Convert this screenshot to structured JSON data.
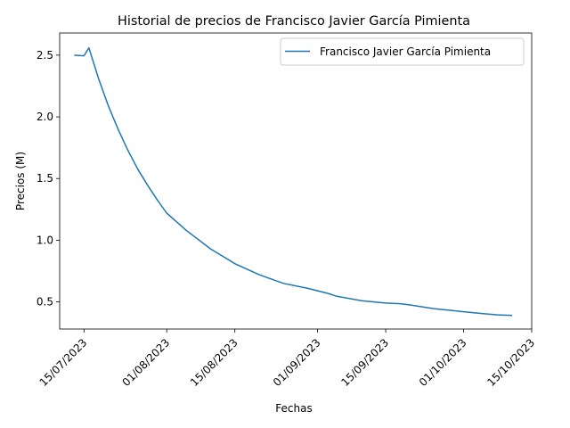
{
  "chart_data": {
    "type": "line",
    "title": "Historial de precios de Francisco Javier García Pimienta",
    "xlabel": "Fechas",
    "ylabel": "Precios (M)",
    "x_type": "date",
    "xlim": [
      "2023-07-10",
      "2023-10-15"
    ],
    "ylim": [
      0.28,
      2.68
    ],
    "x_ticks": [
      "2023-07-15",
      "2023-08-01",
      "2023-08-15",
      "2023-09-01",
      "2023-09-15",
      "2023-10-01",
      "2023-10-15"
    ],
    "x_tick_labels": [
      "15/07/2023",
      "01/08/2023",
      "15/08/2023",
      "01/09/2023",
      "15/09/2023",
      "01/10/2023",
      "15/10/2023"
    ],
    "y_ticks": [
      0.5,
      1.0,
      1.5,
      2.0,
      2.5
    ],
    "y_tick_labels": [
      "0.5",
      "1.0",
      "1.5",
      "2.0",
      "2.5"
    ],
    "grid": false,
    "legend_position": "top-right",
    "series": [
      {
        "name": "Francisco Javier García Pimienta",
        "color": "#1f77b4",
        "x": [
          "2023-07-13",
          "2023-07-15",
          "2023-07-16",
          "2023-07-18",
          "2023-07-20",
          "2023-07-22",
          "2023-07-24",
          "2023-07-26",
          "2023-07-28",
          "2023-07-30",
          "2023-08-01",
          "2023-08-05",
          "2023-08-10",
          "2023-08-15",
          "2023-08-20",
          "2023-08-25",
          "2023-08-30",
          "2023-09-01",
          "2023-09-03",
          "2023-09-05",
          "2023-09-10",
          "2023-09-15",
          "2023-09-18",
          "2023-09-20",
          "2023-09-25",
          "2023-10-01",
          "2023-10-05",
          "2023-10-08",
          "2023-10-11"
        ],
        "y": [
          2.5,
          2.495,
          2.56,
          2.31,
          2.09,
          1.9,
          1.73,
          1.58,
          1.45,
          1.33,
          1.22,
          1.08,
          0.93,
          0.81,
          0.72,
          0.65,
          0.61,
          0.59,
          0.57,
          0.545,
          0.51,
          0.49,
          0.485,
          0.475,
          0.445,
          0.42,
          0.405,
          0.395,
          0.39
        ]
      }
    ]
  }
}
